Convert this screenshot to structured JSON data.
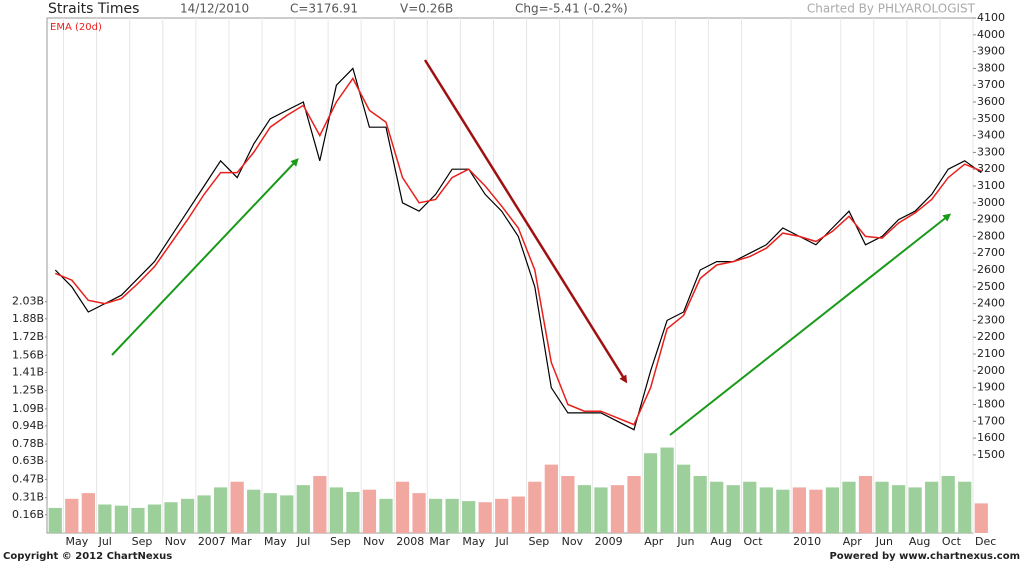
{
  "chart_data": {
    "type": "stock",
    "title": "Straits Times",
    "header": [
      "14/12/2010",
      "C=3176.91",
      "V=0.26B",
      "Chg=-5.41 (-0.2%)"
    ],
    "credit": "Charted By PHLYAROLOGIST",
    "footer_left": "Copyright © 2012 ChartNexus",
    "footer_right": "Powered by www.chartnexus.com",
    "x": [
      "2006-04",
      "2006-05",
      "2006-06",
      "2006-07",
      "2006-08",
      "2006-09",
      "2006-10",
      "2006-11",
      "2006-12",
      "2007-01",
      "2007-02",
      "2007-03",
      "2007-04",
      "2007-05",
      "2007-06",
      "2007-07",
      "2007-08",
      "2007-09",
      "2007-10",
      "2007-11",
      "2007-12",
      "2008-01",
      "2008-02",
      "2008-03",
      "2008-04",
      "2008-05",
      "2008-06",
      "2008-07",
      "2008-08",
      "2008-09",
      "2008-10",
      "2008-11",
      "2008-12",
      "2009-01",
      "2009-02",
      "2009-03",
      "2009-04",
      "2009-05",
      "2009-06",
      "2009-07",
      "2009-08",
      "2009-09",
      "2009-10",
      "2009-11",
      "2009-12",
      "2010-01",
      "2010-02",
      "2010-03",
      "2010-04",
      "2010-05",
      "2010-06",
      "2010-07",
      "2010-08",
      "2010-09",
      "2010-10",
      "2010-11",
      "2010-12"
    ],
    "xlim": [
      "2006-04",
      "2010-12"
    ],
    "series": [
      {
        "color": "#000000",
        "values": [
          2600,
          2500,
          2350,
          2400,
          2450,
          2550,
          2650,
          2800,
          2950,
          3100,
          3250,
          3150,
          3350,
          3500,
          3550,
          3600,
          3250,
          3700,
          3800,
          3450,
          3450,
          3000,
          2950,
          3050,
          3200,
          3200,
          3050,
          2950,
          2800,
          2500,
          1900,
          1750,
          1750,
          1750,
          1700,
          1650,
          2000,
          2300,
          2350,
          2600,
          2650,
          2650,
          2700,
          2750,
          2850,
          2800,
          2750,
          2850,
          2950,
          2750,
          2800,
          2900,
          2950,
          3050,
          3200,
          3250,
          3180
        ]
      },
      {
        "name": "EMA (20d)",
        "color": "#e8201c",
        "values": [
          2580,
          2540,
          2420,
          2400,
          2430,
          2520,
          2620,
          2760,
          2900,
          3050,
          3180,
          3180,
          3300,
          3450,
          3520,
          3580,
          3400,
          3600,
          3740,
          3550,
          3480,
          3150,
          3000,
          3020,
          3150,
          3200,
          3100,
          2980,
          2850,
          2600,
          2050,
          1800,
          1760,
          1760,
          1720,
          1680,
          1900,
          2250,
          2330,
          2550,
          2630,
          2650,
          2680,
          2730,
          2820,
          2800,
          2770,
          2830,
          2920,
          2800,
          2790,
          2880,
          2940,
          3020,
          3150,
          3230,
          3190
        ]
      }
    ],
    "ylim": [
      1035,
      4100
    ],
    "yticks": [
      1500,
      1600,
      1700,
      1800,
      1900,
      2000,
      2100,
      2200,
      2300,
      2400,
      2500,
      2600,
      2700,
      2800,
      2900,
      3000,
      3100,
      3200,
      3300,
      3400,
      3500,
      3600,
      3700,
      3800,
      3900,
      4000,
      4100
    ],
    "volume": {
      "up_color": "#9ccf9a",
      "down_color": "#f0a8a0",
      "values": [
        0.22,
        0.3,
        0.35,
        0.25,
        0.24,
        0.22,
        0.25,
        0.27,
        0.3,
        0.33,
        0.4,
        0.45,
        0.38,
        0.35,
        0.33,
        0.42,
        0.5,
        0.4,
        0.36,
        0.38,
        0.3,
        0.45,
        0.35,
        0.3,
        0.3,
        0.28,
        0.27,
        0.3,
        0.32,
        0.45,
        0.6,
        0.5,
        0.42,
        0.4,
        0.42,
        0.5,
        0.7,
        0.75,
        0.6,
        0.5,
        0.45,
        0.42,
        0.45,
        0.4,
        0.38,
        0.4,
        0.38,
        0.4,
        0.45,
        0.5,
        0.45,
        0.42,
        0.4,
        0.45,
        0.5,
        0.45,
        0.26
      ],
      "ylim": [
        0,
        4.52
      ],
      "yticks": [
        {
          "value": 0.16,
          "label": "0.16B"
        },
        {
          "value": 0.31,
          "label": "0.31B"
        },
        {
          "value": 0.47,
          "label": "0.47B"
        },
        {
          "value": 0.63,
          "label": "0.63B"
        },
        {
          "value": 0.78,
          "label": "0.78B"
        },
        {
          "value": 0.94,
          "label": "0.94B"
        },
        {
          "value": 1.09,
          "label": "1.09B"
        },
        {
          "value": 1.25,
          "label": "1.25B"
        },
        {
          "value": 1.41,
          "label": "1.41B"
        },
        {
          "value": 1.56,
          "label": "1.56B"
        },
        {
          "value": 1.72,
          "label": "1.72B"
        },
        {
          "value": 1.88,
          "label": "1.88B"
        },
        {
          "value": 2.03,
          "label": "2.03B"
        }
      ]
    },
    "xticks": [
      {
        "value": "2006-05",
        "label": "May"
      },
      {
        "value": "2006-07",
        "label": "Jul"
      },
      {
        "value": "2006-09",
        "label": "Sep"
      },
      {
        "value": "2006-11",
        "label": "Nov"
      },
      {
        "value": "2007-01",
        "label": "2007"
      },
      {
        "value": "2007-03",
        "label": "Mar"
      },
      {
        "value": "2007-05",
        "label": "May"
      },
      {
        "value": "2007-07",
        "label": "Jul"
      },
      {
        "value": "2007-09",
        "label": "Sep"
      },
      {
        "value": "2007-11",
        "label": "Nov"
      },
      {
        "value": "2008-01",
        "label": "2008"
      },
      {
        "value": "2008-03",
        "label": "Mar"
      },
      {
        "value": "2008-05",
        "label": "May"
      },
      {
        "value": "2008-07",
        "label": "Jul"
      },
      {
        "value": "2008-09",
        "label": "Sep"
      },
      {
        "value": "2008-11",
        "label": "Nov"
      },
      {
        "value": "2009-01",
        "label": "2009"
      },
      {
        "value": "2009-04",
        "label": "Apr"
      },
      {
        "value": "2009-06",
        "label": "Jun"
      },
      {
        "value": "2009-08",
        "label": "Aug"
      },
      {
        "value": "2009-10",
        "label": "Oct"
      },
      {
        "value": "2010-01",
        "label": "2010"
      },
      {
        "value": "2010-04",
        "label": "Apr"
      },
      {
        "value": "2010-06",
        "label": "Jun"
      },
      {
        "value": "2010-08",
        "label": "Aug"
      },
      {
        "value": "2010-10",
        "label": "Oct"
      },
      {
        "value": "2010-12",
        "label": "Dec"
      }
    ],
    "grid": true
  }
}
